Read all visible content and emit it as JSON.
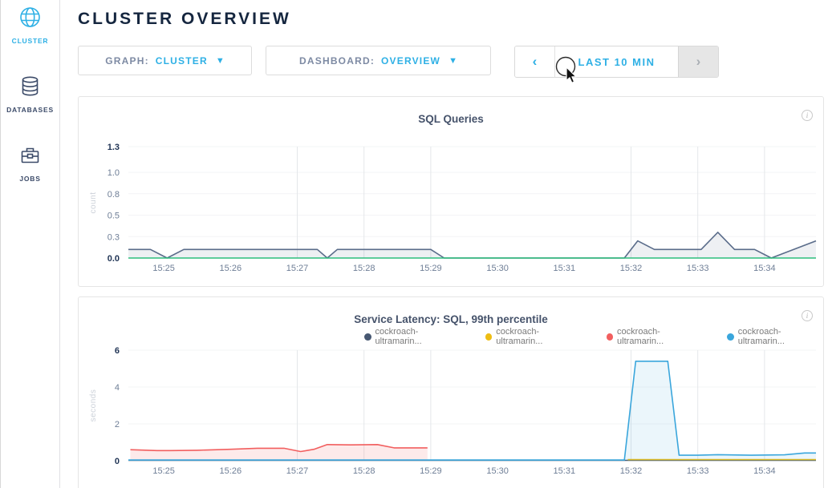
{
  "app": {
    "title": "CLUSTER OVERVIEW"
  },
  "sidebar": {
    "items": [
      {
        "label": "CLUSTER",
        "icon": "globe-icon",
        "active": true
      },
      {
        "label": "DATABASES",
        "icon": "databases-icon",
        "active": false
      },
      {
        "label": "JOBS",
        "icon": "briefcase-icon",
        "active": false
      }
    ]
  },
  "controls": {
    "graph": {
      "label": "GRAPH:",
      "value": "CLUSTER",
      "caret": "▼"
    },
    "dashboard": {
      "label": "DASHBOARD:",
      "value": "OVERVIEW",
      "caret": "▼"
    },
    "timerange": {
      "prev": "‹",
      "label": "LAST 10 MIN",
      "next": "›",
      "next_disabled": true
    }
  },
  "icons": {
    "info": "i"
  },
  "colors": {
    "accent_cyan": "#2eb0e5",
    "navy_text": "#15263f",
    "series_slate": "#5a6c8a",
    "series_green": "#2dbe7d",
    "series_navy": "#475872",
    "series_yellow": "#eebd13",
    "series_red": "#f25f5f",
    "series_blue": "#3aa6dc"
  },
  "chart_data": [
    {
      "type": "line",
      "title": "SQL Queries",
      "ylabel": "count",
      "ylim": [
        0,
        1.3
      ],
      "yticks": [
        0,
        0.25,
        0.5,
        0.75,
        1.0,
        1.3
      ],
      "ytick_labels": [
        "0.0",
        "0.3",
        "0.5",
        "0.8",
        "1.0",
        "1.3"
      ],
      "xlim": [
        24.47,
        34.77
      ],
      "xticks": [
        25,
        26,
        27,
        28,
        29,
        30,
        31,
        32,
        33,
        34
      ],
      "xtick_labels": [
        "15:25",
        "15:26",
        "15:27",
        "15:28",
        "15:29",
        "15:30",
        "15:31",
        "15:32",
        "15:33",
        "15:34"
      ],
      "grid_x": [
        27,
        28,
        29,
        32,
        33,
        34
      ],
      "grid": true,
      "legend": [],
      "series": [
        {
          "name": "sql-queries-line",
          "color": "#5a6c8a",
          "fill": "rgba(90,108,138,0.10)",
          "points": [
            [
              24.47,
              0.1
            ],
            [
              24.8,
              0.1
            ],
            [
              25.05,
              0
            ],
            [
              25.3,
              0.1
            ],
            [
              27.3,
              0.1
            ],
            [
              27.45,
              0
            ],
            [
              27.6,
              0.1
            ],
            [
              29.0,
              0.1
            ],
            [
              29.2,
              0
            ],
            [
              31.9,
              0
            ],
            [
              32.1,
              0.2
            ],
            [
              32.35,
              0.1
            ],
            [
              33.05,
              0.1
            ],
            [
              33.3,
              0.3
            ],
            [
              33.55,
              0.1
            ],
            [
              33.85,
              0.1
            ],
            [
              34.1,
              0
            ],
            [
              34.77,
              0.2
            ]
          ]
        },
        {
          "name": "zero-baseline-line",
          "color": "#2dbe7d",
          "fill": "none",
          "points": [
            [
              24.47,
              0
            ],
            [
              34.77,
              0
            ]
          ]
        }
      ]
    },
    {
      "type": "line",
      "title": "Service Latency: SQL, 99th percentile",
      "ylabel": "seconds",
      "ylim": [
        0,
        6
      ],
      "yticks": [
        0,
        2,
        4,
        6
      ],
      "ytick_labels": [
        "0",
        "2",
        "4",
        "6"
      ],
      "xlim": [
        24.47,
        34.77
      ],
      "xticks": [
        25,
        26,
        27,
        28,
        29,
        30,
        31,
        32,
        33,
        34
      ],
      "xtick_labels": [
        "15:25",
        "15:26",
        "15:27",
        "15:28",
        "15:29",
        "15:30",
        "15:31",
        "15:32",
        "15:33",
        "15:34"
      ],
      "grid_x": [
        27,
        28,
        29,
        32,
        33,
        34
      ],
      "grid": true,
      "legend": [
        {
          "label": "cockroach-ultramarin...",
          "color": "#475872"
        },
        {
          "label": "cockroach-ultramarin...",
          "color": "#eebd13"
        },
        {
          "label": "cockroach-ultramarin...",
          "color": "#f25f5f"
        },
        {
          "label": "cockroach-ultramarin...",
          "color": "#3aa6dc"
        }
      ],
      "series": [
        {
          "name": "node-navy-line",
          "color": "#475872",
          "fill": "none",
          "points": [
            [
              24.47,
              0.02
            ],
            [
              34.77,
              0.02
            ]
          ]
        },
        {
          "name": "node-yellow-line",
          "color": "#eebd13",
          "fill": "none",
          "points": [
            [
              31.95,
              0.06
            ],
            [
              34.77,
              0.06
            ]
          ]
        },
        {
          "name": "node-red-line",
          "color": "#f25f5f",
          "fill": "rgba(242,95,95,0.13)",
          "points": [
            [
              24.5,
              0.6
            ],
            [
              24.9,
              0.55
            ],
            [
              25.1,
              0.55
            ],
            [
              25.5,
              0.57
            ],
            [
              26.0,
              0.62
            ],
            [
              26.4,
              0.68
            ],
            [
              26.8,
              0.68
            ],
            [
              27.05,
              0.5
            ],
            [
              27.25,
              0.62
            ],
            [
              27.45,
              0.88
            ],
            [
              27.8,
              0.86
            ],
            [
              28.2,
              0.88
            ],
            [
              28.45,
              0.7
            ],
            [
              28.95,
              0.7
            ]
          ]
        },
        {
          "name": "node-blue-line",
          "color": "#3aa6dc",
          "fill": "rgba(58,166,220,0.10)",
          "points": [
            [
              24.47,
              0.04
            ],
            [
              31.9,
              0.04
            ],
            [
              32.07,
              5.4
            ],
            [
              32.55,
              5.4
            ],
            [
              32.72,
              0.3
            ],
            [
              33.0,
              0.3
            ],
            [
              33.3,
              0.33
            ],
            [
              33.8,
              0.3
            ],
            [
              34.3,
              0.32
            ],
            [
              34.6,
              0.42
            ],
            [
              34.77,
              0.42
            ]
          ]
        }
      ]
    }
  ]
}
